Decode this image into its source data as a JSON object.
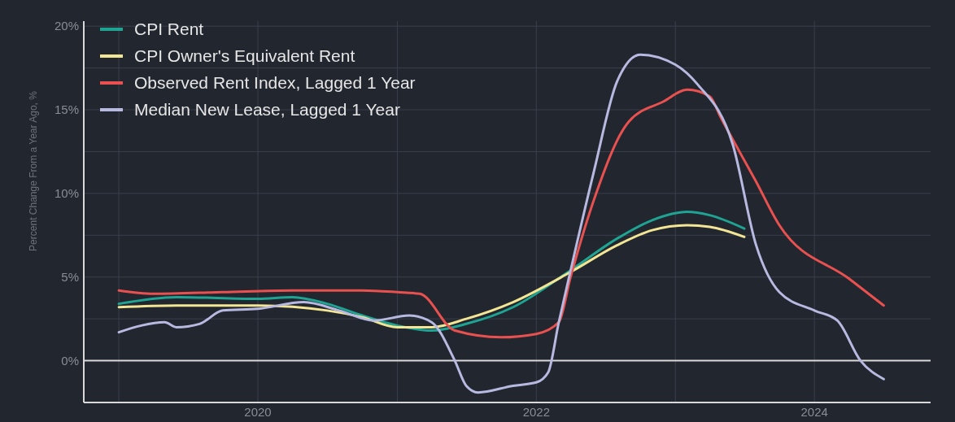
{
  "chart_data": {
    "type": "line",
    "ylabel": "Percent Change From a Year Ago, %",
    "xlim": [
      "2018-10",
      "2024-11"
    ],
    "ylim": [
      -2.5,
      20.3
    ],
    "xticks": [
      {
        "value": "2019",
        "label": null
      },
      "2020",
      {
        "value": "2021",
        "label": null
      },
      "2022",
      {
        "value": "2023",
        "label": null
      },
      "2024"
    ],
    "yticks": [
      {
        "value": 0,
        "label": "0%"
      },
      {
        "value": 2.5,
        "label": null
      },
      {
        "value": 5,
        "label": "5%"
      },
      {
        "value": 7.5,
        "label": null
      },
      {
        "value": 10,
        "label": "10%"
      },
      {
        "value": 12.5,
        "label": null
      },
      {
        "value": 15,
        "label": "15%"
      },
      {
        "value": 17.5,
        "label": null
      },
      {
        "value": 20,
        "label": "20%"
      }
    ],
    "grid": true,
    "legend": "top left",
    "line_style": "solid",
    "ref_lines": [
      {
        "axis": "y",
        "value": 0,
        "color": "#d9d9d9"
      }
    ],
    "series": [
      {
        "name": "CPI Rent",
        "color": "#1fa392",
        "x": [
          "2019-01",
          "2019-06",
          "2020-01",
          "2020-04",
          "2020-07",
          "2020-10",
          "2021-01",
          "2021-04",
          "2021-07",
          "2021-11",
          "2022-04",
          "2022-08",
          "2022-11",
          "2023-02",
          "2023-04",
          "2023-07"
        ],
        "values": [
          3.4,
          3.8,
          3.7,
          3.8,
          3.4,
          2.7,
          2.1,
          1.8,
          2.2,
          3.2,
          5.4,
          7.3,
          8.4,
          8.9,
          8.7,
          7.9
        ]
      },
      {
        "name": "CPI Owner's Equivalent Rent",
        "color": "#f2e594",
        "x": [
          "2019-01",
          "2019-06",
          "2020-01",
          "2020-07",
          "2020-10",
          "2021-01",
          "2021-04",
          "2021-07",
          "2021-11",
          "2022-04",
          "2022-08",
          "2022-11",
          "2023-02",
          "2023-04",
          "2023-07"
        ],
        "values": [
          3.2,
          3.3,
          3.3,
          3.0,
          2.6,
          2.0,
          2.0,
          2.5,
          3.5,
          5.3,
          6.9,
          7.8,
          8.1,
          8.0,
          7.4
        ]
      },
      {
        "name": "Observed Rent Index, Lagged 1 Year",
        "color": "#e8514f",
        "x": [
          "2019-01",
          "2019-04",
          "2019-10",
          "2020-04",
          "2020-10",
          "2021-01",
          "2021-03",
          "2021-06",
          "2021-10",
          "2022-01",
          "2022-03",
          "2022-04",
          "2022-06",
          "2022-09",
          "2022-12",
          "2023-02",
          "2023-04",
          "2023-05",
          "2023-08",
          "2023-10",
          "2024-04",
          "2024-07"
        ],
        "values": [
          4.2,
          4.0,
          4.1,
          4.2,
          4.2,
          4.1,
          4.0,
          1.8,
          1.4,
          1.6,
          2.3,
          5.0,
          9.6,
          14.3,
          15.5,
          16.2,
          15.8,
          14.5,
          10.7,
          8.1,
          4.9,
          3.3
        ]
      },
      {
        "name": "Median New Lease, Lagged 1 Year",
        "color": "#b8b9e0",
        "x": [
          "2019-01",
          "2019-03",
          "2019-05",
          "2019-06",
          "2019-08",
          "2019-10",
          "2020-01",
          "2020-05",
          "2020-08",
          "2020-11",
          "2021-02",
          "2021-04",
          "2021-06",
          "2021-07",
          "2021-08",
          "2021-11",
          "2022-01",
          "2022-02",
          "2022-03",
          "2022-04",
          "2022-06",
          "2022-08",
          "2022-10",
          "2023-01",
          "2023-03",
          "2023-06",
          "2023-08",
          "2023-10",
          "2024-01",
          "2024-03",
          "2024-05",
          "2024-07"
        ],
        "values": [
          1.7,
          2.1,
          2.3,
          2.0,
          2.2,
          3.0,
          3.1,
          3.5,
          3.0,
          2.4,
          2.7,
          2.3,
          0.0,
          -1.5,
          -1.9,
          -1.5,
          -1.3,
          -0.7,
          2.3,
          5.4,
          11.3,
          16.7,
          18.3,
          17.7,
          16.5,
          12.9,
          6.9,
          4.1,
          3.0,
          2.4,
          0.0,
          -1.1
        ]
      }
    ]
  }
}
